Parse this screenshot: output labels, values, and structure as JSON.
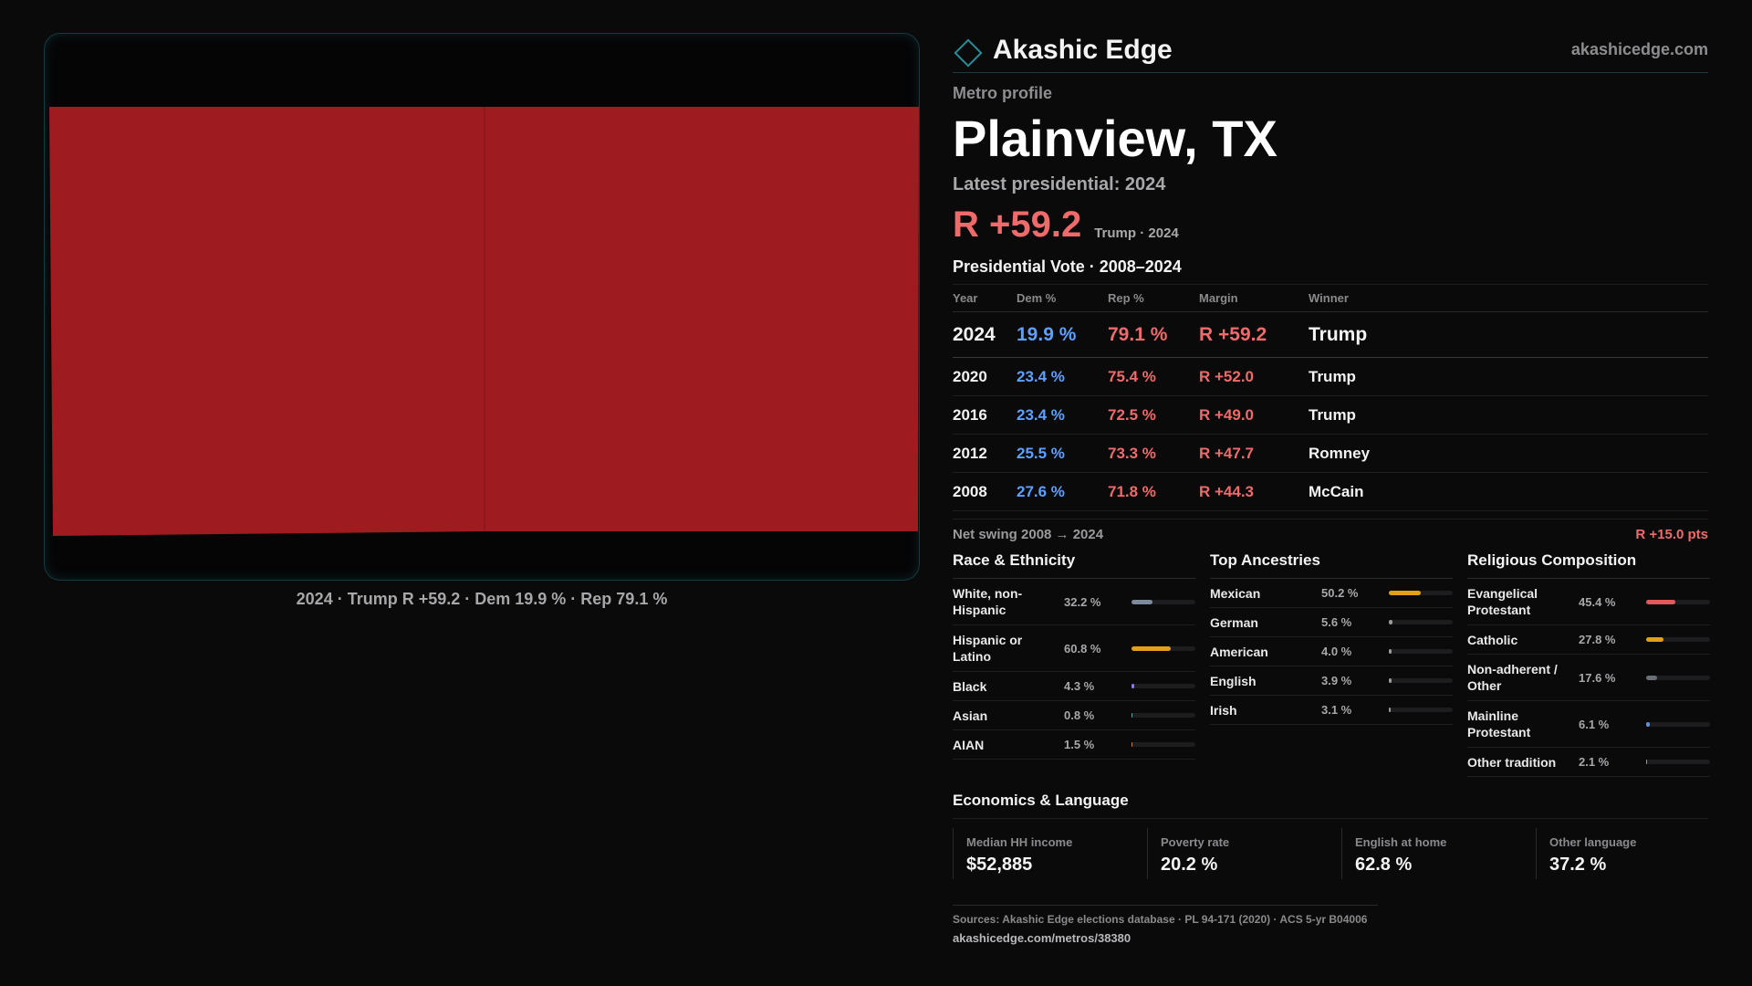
{
  "brand": {
    "name": "Akashic Edge",
    "domain": "akashicedge.com",
    "icon": "diamond-icon",
    "accent": "#2a8c98"
  },
  "map": {
    "caption": "2024 · Trump R +59.2 · Dem 19.9 % · Rep 79.1 %",
    "fill_color": "#9e1c20"
  },
  "profile": {
    "kicker": "Metro profile",
    "title": "Plainview, TX",
    "latest_label": "Latest presidential: 2024",
    "latest_margin": "R +59.2",
    "latest_sub": "Trump · 2024"
  },
  "results": {
    "title": "Presidential Vote · 2008–2024",
    "headers": [
      "Year",
      "Dem %",
      "Rep %",
      "Margin",
      "Winner"
    ],
    "rows": [
      {
        "year": "2024",
        "dem": "19.9 %",
        "rep": "79.1 %",
        "margin": "R +59.2",
        "winner": "Trump"
      },
      {
        "year": "2020",
        "dem": "23.4 %",
        "rep": "75.4 %",
        "margin": "R +52.0",
        "winner": "Trump"
      },
      {
        "year": "2016",
        "dem": "23.4 %",
        "rep": "72.5 %",
        "margin": "R +49.0",
        "winner": "Trump"
      },
      {
        "year": "2012",
        "dem": "25.5 %",
        "rep": "73.3 %",
        "margin": "R +47.7",
        "winner": "Romney"
      },
      {
        "year": "2008",
        "dem": "27.6 %",
        "rep": "71.8 %",
        "margin": "R +44.3",
        "winner": "McCain"
      }
    ],
    "swing_label": "Net swing 2008 → 2024",
    "swing_value": "R +15.0 pts"
  },
  "race": {
    "title": "Race & Ethnicity",
    "items": [
      {
        "name": "White, non-Hispanic",
        "pct": "32.2 %",
        "value": 32.2,
        "color": "#7d8a9c",
        "lines": 2
      },
      {
        "name": "Hispanic or Latino",
        "pct": "60.8 %",
        "value": 60.8,
        "color": "#e1a017",
        "lines": 2
      },
      {
        "name": "Black",
        "pct": "4.3 %",
        "value": 4.3,
        "color": "#8a7ddb",
        "lines": 1
      },
      {
        "name": "Asian",
        "pct": "0.8 %",
        "value": 0.8,
        "color": "#5aa7a7",
        "lines": 1
      },
      {
        "name": "AIAN",
        "pct": "1.5 %",
        "value": 1.5,
        "color": "#d07a3a",
        "lines": 1
      }
    ]
  },
  "ancestry": {
    "title": "Top Ancestries",
    "items": [
      {
        "name": "Mexican",
        "pct": "50.2 %",
        "value": 50.2,
        "color": "#e1a017",
        "lines": 1
      },
      {
        "name": "German",
        "pct": "5.6 %",
        "value": 5.6,
        "color": "#9a9a9d",
        "lines": 1
      },
      {
        "name": "American",
        "pct": "4.0 %",
        "value": 4.0,
        "color": "#9a9a9d",
        "lines": 1
      },
      {
        "name": "English",
        "pct": "3.9 %",
        "value": 3.9,
        "color": "#9a9a9d",
        "lines": 1
      },
      {
        "name": "Irish",
        "pct": "3.1 %",
        "value": 3.1,
        "color": "#9a9a9d",
        "lines": 1
      }
    ]
  },
  "religion": {
    "title": "Religious Composition",
    "items": [
      {
        "name": "Evangelical Protestant",
        "pct": "45.4 %",
        "value": 45.4,
        "color": "#e05a5a",
        "lines": 2
      },
      {
        "name": "Catholic",
        "pct": "27.8 %",
        "value": 27.8,
        "color": "#e1a017",
        "lines": 1
      },
      {
        "name": "Non-adherent / Other",
        "pct": "17.6 %",
        "value": 17.6,
        "color": "#6b6f78",
        "lines": 2
      },
      {
        "name": "Mainline Protestant",
        "pct": "6.1 %",
        "value": 6.1,
        "color": "#5e8fe0",
        "lines": 2
      },
      {
        "name": "Other tradition",
        "pct": "2.1 %",
        "value": 2.1,
        "color": "#9a9a9d",
        "lines": 1
      }
    ]
  },
  "economics": {
    "title": "Economics & Language",
    "items": [
      {
        "label": "Median HH income",
        "value": "$52,885"
      },
      {
        "label": "Poverty rate",
        "value": "20.2 %"
      },
      {
        "label": "English at home",
        "value": "62.8 %"
      },
      {
        "label": "Other language",
        "value": "37.2 %"
      }
    ]
  },
  "sources": {
    "text": "Sources: Akashic Edge elections database · PL 94-171 (2020) · ACS 5-yr B04006",
    "url": "akashicedge.com/metros/38380"
  }
}
